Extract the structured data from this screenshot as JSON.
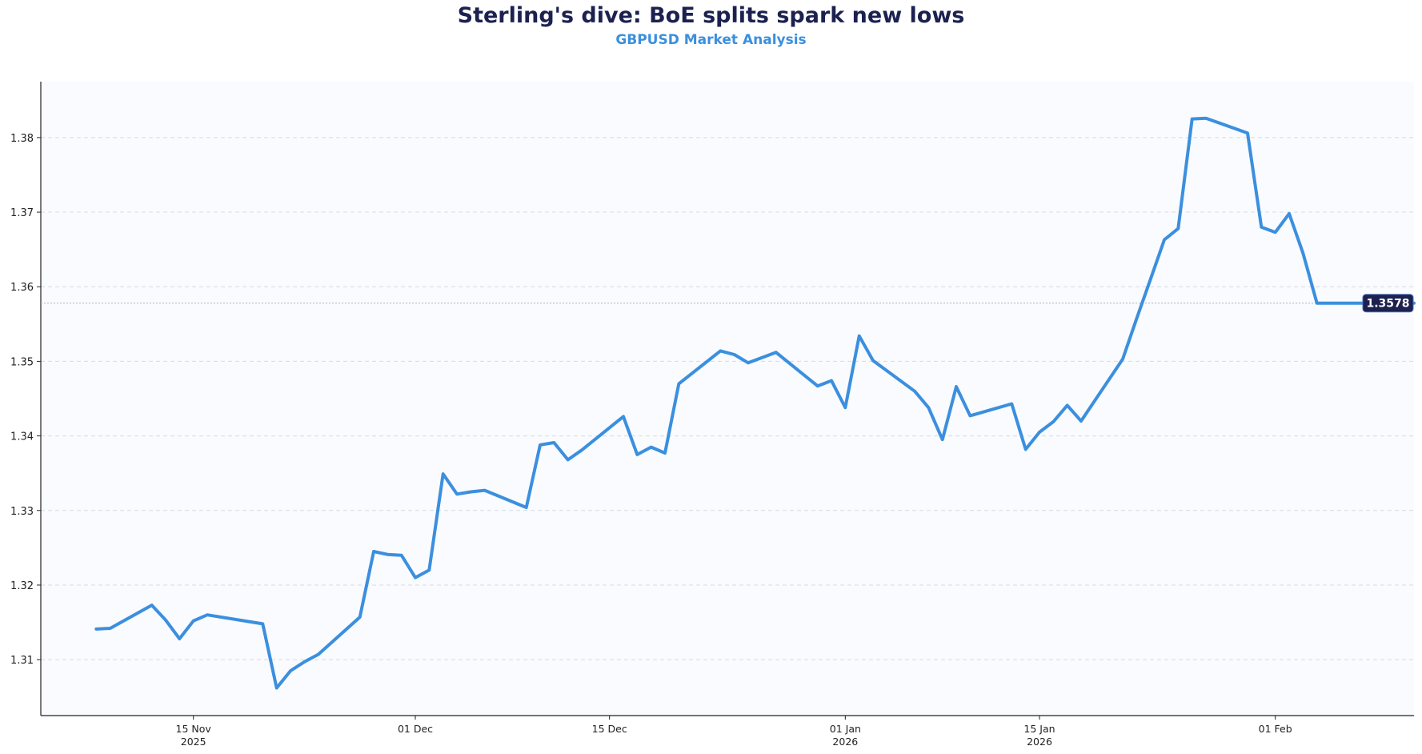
{
  "chart_data": {
    "type": "line",
    "title": "Sterling's dive: BoE splits spark new lows",
    "subtitle": "GBPUSD Market Analysis",
    "xlabel": "",
    "ylabel": "",
    "ylim": [
      1.3025,
      1.3875
    ],
    "xlim": [
      "2025-11-04",
      "2026-02-11"
    ],
    "yticks": [
      1.31,
      1.32,
      1.33,
      1.34,
      1.35,
      1.36,
      1.37,
      1.38
    ],
    "ytick_labels": [
      "1.31",
      "1.32",
      "1.33",
      "1.34",
      "1.35",
      "1.36",
      "1.37",
      "1.38"
    ],
    "xticks": [
      {
        "date": "2025-11-15",
        "label": "15 Nov",
        "sublabel": "2025"
      },
      {
        "date": "2025-12-01",
        "label": "01 Dec",
        "sublabel": ""
      },
      {
        "date": "2025-12-15",
        "label": "15 Dec",
        "sublabel": ""
      },
      {
        "date": "2026-01-01",
        "label": "01 Jan",
        "sublabel": "2026"
      },
      {
        "date": "2026-01-15",
        "label": "15 Jan",
        "sublabel": "2026"
      },
      {
        "date": "2026-02-01",
        "label": "01 Feb",
        "sublabel": ""
      }
    ],
    "grid": "horizontal-dashed",
    "colors": {
      "line": "#3b8fde",
      "title": "#1c2150",
      "subtitle": "#3b8fde",
      "badge": "#1c2150",
      "plot_bg": "#f9fbfe",
      "grid": "#d6dbe2"
    },
    "last_value": 1.3578,
    "last_value_label": "1.3578",
    "series": [
      {
        "x": [
          "2025-11-08",
          "2025-11-09",
          "2025-11-12",
          "2025-11-13",
          "2025-11-14",
          "2025-11-15",
          "2025-11-16",
          "2025-11-20",
          "2025-11-21",
          "2025-11-22",
          "2025-11-23",
          "2025-11-24",
          "2025-11-27",
          "2025-11-28",
          "2025-11-29",
          "2025-11-30",
          "2025-12-01",
          "2025-12-02",
          "2025-12-03",
          "2025-12-04",
          "2025-12-05",
          "2025-12-06",
          "2025-12-09",
          "2025-12-10",
          "2025-12-11",
          "2025-12-12",
          "2025-12-13",
          "2025-12-16",
          "2025-12-17",
          "2025-12-18",
          "2025-12-19",
          "2025-12-20",
          "2025-12-23",
          "2025-12-24",
          "2025-12-25",
          "2025-12-27",
          "2025-12-30",
          "2025-12-31",
          "2026-01-01",
          "2026-01-02",
          "2026-01-03",
          "2026-01-06",
          "2026-01-07",
          "2026-01-08",
          "2026-01-09",
          "2026-01-10",
          "2026-01-13",
          "2026-01-14",
          "2026-01-15",
          "2026-01-16",
          "2026-01-17",
          "2026-01-18",
          "2026-01-21",
          "2026-01-22",
          "2026-01-23",
          "2026-01-24",
          "2026-01-25",
          "2026-01-26",
          "2026-01-27",
          "2026-01-30",
          "2026-01-31",
          "2026-02-01",
          "2026-02-02",
          "2026-02-03",
          "2026-02-04",
          "2026-02-05",
          "2026-02-06",
          "2026-02-07",
          "2026-02-08",
          "2026-02-09",
          "2026-02-10",
          "2026-02-11"
        ],
        "values": [
          1.3141,
          1.3142,
          1.3173,
          1.3153,
          1.3128,
          1.3152,
          1.316,
          1.3148,
          1.3062,
          1.3085,
          1.3097,
          1.3107,
          1.3157,
          1.3245,
          1.3241,
          1.324,
          1.321,
          1.322,
          1.3349,
          1.3322,
          1.3325,
          1.3327,
          1.3304,
          1.3388,
          1.3391,
          1.3368,
          1.3381,
          1.3426,
          1.3375,
          1.3385,
          1.3377,
          1.347,
          1.3514,
          1.3509,
          1.3498,
          1.3512,
          1.3467,
          1.3474,
          1.3438,
          1.3534,
          1.3501,
          1.346,
          1.3438,
          1.3395,
          1.3466,
          1.3427,
          1.3443,
          1.3382,
          1.3405,
          1.3419,
          1.3441,
          1.342,
          1.3503,
          1.3557,
          1.361,
          1.3663,
          1.3678,
          1.3825,
          1.3826,
          1.3806,
          1.368,
          1.3673,
          1.3698,
          1.3645,
          1.3578,
          1.3578,
          1.3578,
          1.3578,
          1.3578,
          1.3578,
          1.3578,
          1.3578
        ]
      }
    ]
  }
}
